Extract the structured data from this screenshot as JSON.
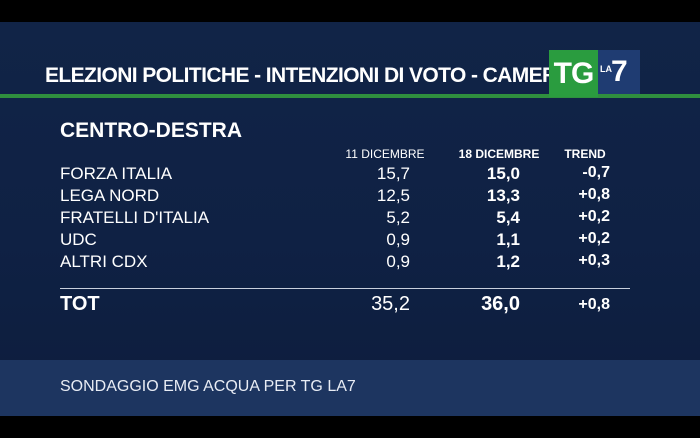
{
  "header": {
    "title": "ELEZIONI POLITICHE - INTENZIONI DI VOTO - CAMERA"
  },
  "logo": {
    "tg": "TG",
    "la": "LA",
    "seven": "7"
  },
  "section": {
    "title": "CENTRO-DESTRA"
  },
  "columns": {
    "col1": "11 DICEMBRE",
    "col2": "18 DICEMBRE",
    "col3": "TREND"
  },
  "rows": [
    {
      "name": "FORZA ITALIA",
      "v1": "15,7",
      "v2": "15,0",
      "trend": "-0,7"
    },
    {
      "name": "LEGA NORD",
      "v1": "12,5",
      "v2": "13,3",
      "trend": "+0,8"
    },
    {
      "name": "FRATELLI D'ITALIA",
      "v1": "5,2",
      "v2": "5,4",
      "trend": "+0,2"
    },
    {
      "name": "UDC",
      "v1": "0,9",
      "v2": "1,1",
      "trend": "+0,2"
    },
    {
      "name": "ALTRI CDX",
      "v1": "0,9",
      "v2": "1,2",
      "trend": "+0,3"
    }
  ],
  "total": {
    "name": "TOT",
    "v1": "35,2",
    "v2": "36,0",
    "trend": "+0,8"
  },
  "footer": {
    "source": "SONDAGGIO EMG ACQUA PER TG LA7"
  },
  "colors": {
    "background": "#0f2144",
    "accent_green": "#2a9c3f",
    "logo_blue": "#1f3c72",
    "footer_band": "#1d3560"
  }
}
